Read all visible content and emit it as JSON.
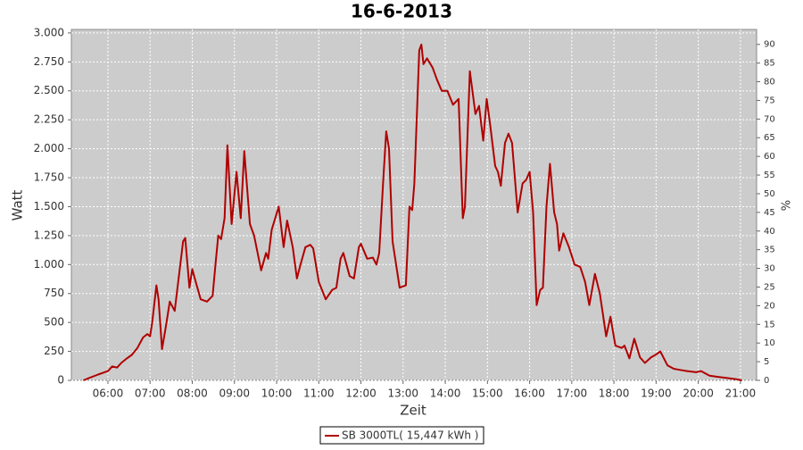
{
  "chart_data": {
    "type": "line",
    "title": "16-6-2013",
    "x_label": "Zeit",
    "y_label": "Watt",
    "y2_label": "%",
    "x": [
      "05:25",
      "05:33",
      "05:46",
      "06:00",
      "06:06",
      "06:13",
      "06:19",
      "06:27",
      "06:34",
      "06:42",
      "06:50",
      "06:56",
      "07:00",
      "07:03",
      "07:09",
      "07:12",
      "07:17",
      "07:22",
      "07:28",
      "07:35",
      "07:47",
      "07:50",
      "07:56",
      "08:00",
      "08:05",
      "08:12",
      "08:21",
      "08:29",
      "08:33",
      "08:37",
      "08:41",
      "08:46",
      "08:50",
      "08:56",
      "09:03",
      "09:09",
      "09:14",
      "09:22",
      "09:28",
      "09:38",
      "09:45",
      "09:48",
      "09:53",
      "10:03",
      "10:10",
      "10:15",
      "10:23",
      "10:29",
      "10:34",
      "10:41",
      "10:48",
      "10:52",
      "11:00",
      "11:10",
      "11:19",
      "11:25",
      "11:31",
      "11:35",
      "11:44",
      "11:50",
      "11:57",
      "12:00",
      "12:09",
      "12:17",
      "12:22",
      "12:26",
      "12:32",
      "12:36",
      "12:40",
      "12:45",
      "12:55",
      "13:04",
      "13:09",
      "13:13",
      "13:16",
      "13:23",
      "13:26",
      "13:29",
      "13:34",
      "13:42",
      "13:48",
      "13:55",
      "14:03",
      "14:11",
      "14:19",
      "14:25",
      "14:28",
      "14:35",
      "14:43",
      "14:48",
      "14:54",
      "14:59",
      "15:04",
      "15:11",
      "15:15",
      "15:19",
      "15:25",
      "15:30",
      "15:35",
      "15:43",
      "15:50",
      "15:55",
      "16:00",
      "16:05",
      "16:10",
      "16:15",
      "16:19",
      "16:24",
      "16:29",
      "16:35",
      "16:39",
      "16:42",
      "16:48",
      "16:56",
      "17:04",
      "17:12",
      "17:19",
      "17:25",
      "17:33",
      "17:40",
      "17:49",
      "17:55",
      "18:02",
      "18:11",
      "18:15",
      "18:22",
      "18:29",
      "18:37",
      "18:44",
      "18:53",
      "18:59",
      "19:06",
      "19:16",
      "19:25",
      "19:34",
      "19:44",
      "19:57",
      "20:04",
      "20:16",
      "20:28",
      "20:41",
      "20:54",
      "21:02"
    ],
    "series": [
      {
        "name": "SB 3000TL( 15,447 kWh )",
        "color": "#b00000",
        "values": [
          0,
          20,
          50,
          80,
          120,
          110,
          150,
          190,
          220,
          280,
          370,
          400,
          380,
          500,
          820,
          700,
          270,
          450,
          680,
          600,
          1200,
          1230,
          800,
          960,
          850,
          700,
          680,
          730,
          1000,
          1250,
          1220,
          1400,
          2030,
          1350,
          1800,
          1400,
          1980,
          1350,
          1250,
          950,
          1100,
          1050,
          1300,
          1500,
          1150,
          1380,
          1150,
          880,
          1000,
          1150,
          1170,
          1140,
          850,
          700,
          780,
          800,
          1050,
          1100,
          900,
          880,
          1150,
          1180,
          1050,
          1060,
          1000,
          1100,
          1750,
          2150,
          2000,
          1200,
          800,
          820,
          1500,
          1470,
          1700,
          2850,
          2900,
          2730,
          2780,
          2700,
          2600,
          2500,
          2500,
          2380,
          2430,
          1400,
          1500,
          2670,
          2300,
          2370,
          2070,
          2430,
          2200,
          1850,
          1800,
          1680,
          2050,
          2130,
          2050,
          1450,
          1700,
          1730,
          1800,
          1450,
          650,
          780,
          800,
          1500,
          1870,
          1450,
          1350,
          1120,
          1270,
          1150,
          1000,
          980,
          850,
          650,
          920,
          750,
          380,
          550,
          300,
          280,
          300,
          190,
          360,
          200,
          150,
          200,
          220,
          250,
          130,
          100,
          90,
          80,
          70,
          80,
          40,
          30,
          20,
          10,
          0
        ]
      }
    ],
    "xlim": [
      "05:08",
      "21:23"
    ],
    "xticks": [
      "06:00",
      "07:00",
      "08:00",
      "09:00",
      "10:00",
      "11:00",
      "12:00",
      "13:00",
      "14:00",
      "15:00",
      "16:00",
      "17:00",
      "18:00",
      "19:00",
      "20:00",
      "21:00"
    ],
    "ylim": [
      0,
      3030
    ],
    "yticks": [
      0,
      250,
      500,
      750,
      {
        "value": 1000,
        "label": "1.000"
      },
      {
        "value": 1250,
        "label": "1.250"
      },
      {
        "value": 1500,
        "label": "1.500"
      },
      {
        "value": 1750,
        "label": "1.750"
      },
      {
        "value": 2000,
        "label": "2.000"
      },
      {
        "value": 2250,
        "label": "2.250"
      },
      {
        "value": 2500,
        "label": "2.500"
      },
      {
        "value": 2750,
        "label": "2.750"
      },
      {
        "value": 3000,
        "label": "3.000"
      }
    ],
    "y2lim": [
      0,
      94
    ],
    "y2ticks": [
      0,
      5,
      10,
      15,
      20,
      25,
      30,
      35,
      40,
      45,
      50,
      55,
      60,
      65,
      70,
      75,
      80,
      85,
      90
    ],
    "grid": true
  }
}
